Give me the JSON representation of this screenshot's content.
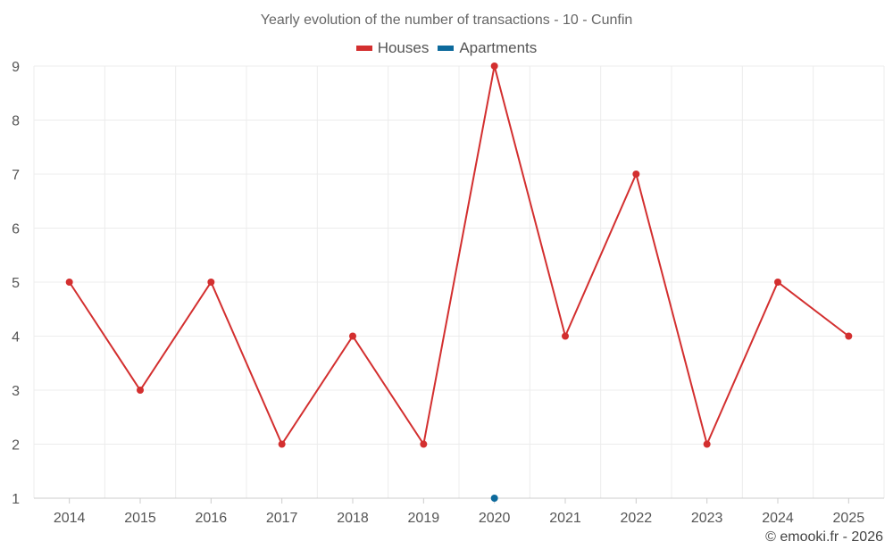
{
  "credit": "© emooki.fr - 2026",
  "chart_data": {
    "type": "line",
    "title": "Yearly evolution of the number of transactions - 10 - Cunfin",
    "xlabel": "",
    "ylabel": "",
    "x": [
      "2014",
      "2015",
      "2016",
      "2017",
      "2018",
      "2019",
      "2020",
      "2021",
      "2022",
      "2023",
      "2024",
      "2025"
    ],
    "ylim": [
      1,
      9
    ],
    "yticks": [
      1,
      2,
      3,
      4,
      5,
      6,
      7,
      8,
      9
    ],
    "grid": true,
    "legend_position": "top-center",
    "series": [
      {
        "name": "Houses",
        "color": "#d32f2f",
        "values": [
          5,
          3,
          5,
          2,
          4,
          2,
          9,
          4,
          7,
          2,
          5,
          4
        ]
      },
      {
        "name": "Apartments",
        "color": "#0d6a9c",
        "values": [
          null,
          null,
          null,
          null,
          null,
          null,
          1,
          null,
          null,
          null,
          null,
          null
        ]
      }
    ]
  }
}
